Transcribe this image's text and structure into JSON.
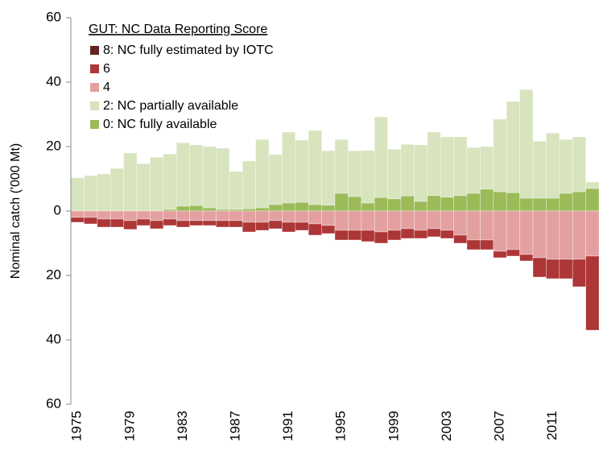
{
  "chart_data": {
    "type": "bar",
    "stacked": true,
    "y_label": "Nominal catch ('000 Mt)",
    "legend_title": "GUT: NC Data Reporting Score",
    "legend_position": "upper left",
    "negative_label_color": "#e00000",
    "ylim": [
      -60,
      60
    ],
    "yticks": [
      {
        "value": -60,
        "label": "60"
      },
      {
        "value": -40,
        "label": "40"
      },
      {
        "value": -20,
        "label": "20"
      },
      0,
      20,
      40,
      60
    ],
    "categories": [
      "1975",
      null,
      null,
      null,
      "1979",
      null,
      null,
      null,
      "1983",
      null,
      null,
      null,
      "1987",
      null,
      null,
      null,
      "1991",
      null,
      null,
      null,
      "1995",
      null,
      null,
      null,
      "1999",
      null,
      null,
      null,
      "2003",
      null,
      null,
      null,
      "2007",
      null,
      null,
      null,
      "2011",
      null,
      null,
      null
    ],
    "series": [
      {
        "name": "8: NC fully estimated by IOTC",
        "color": "#632523",
        "values": [
          0,
          0,
          0,
          0,
          0,
          0,
          0,
          0,
          0,
          0,
          0,
          0,
          0,
          0,
          0,
          0,
          0,
          0,
          0,
          0,
          0,
          0,
          0,
          0,
          0,
          0,
          0,
          0,
          0,
          0,
          0,
          0,
          0,
          0,
          0,
          0,
          0,
          0,
          0,
          0
        ]
      },
      {
        "name": "6",
        "color": "#ad3636",
        "values": [
          -1.5,
          -2,
          -2.5,
          -2.5,
          -2.7,
          -2,
          -2.5,
          -2,
          -2,
          -1.5,
          -1.5,
          -2,
          -2,
          -3,
          -2.5,
          -2.5,
          -3,
          -2.5,
          -3.5,
          -2.5,
          -3,
          -3,
          -3.5,
          -3.5,
          -3,
          -3,
          -2.5,
          -2.5,
          -2.5,
          -2.5,
          -3,
          -3,
          -2,
          -2,
          -2,
          -6,
          -6,
          -6,
          -8.5,
          -23
        ]
      },
      {
        "name": "4",
        "color": "#e4a0a0",
        "values": [
          -2,
          -2,
          -2.5,
          -2.5,
          -3,
          -2.5,
          -3,
          -2.5,
          -3,
          -3,
          -3,
          -3,
          -3,
          -3.5,
          -3.5,
          -3,
          -3.5,
          -3.5,
          -4,
          -4.5,
          -6,
          -6,
          -6,
          -6.5,
          -6,
          -5.5,
          -6,
          -5.5,
          -6,
          -7.5,
          -9,
          -9,
          -12.5,
          -12,
          -13.5,
          -14.5,
          -15,
          -15,
          -15,
          -14
        ]
      },
      {
        "name": "2: NC partially available",
        "color": "#d7e4bd",
        "values": [
          10.3,
          11,
          11.5,
          13.2,
          18,
          14.7,
          16.7,
          17.2,
          19.7,
          18.8,
          19,
          19,
          11.8,
          14.8,
          21.2,
          15.5,
          22,
          19.3,
          23,
          16.9,
          16.7,
          14.2,
          16.3,
          25,
          15.4,
          16,
          17.5,
          19.7,
          18.7,
          18.2,
          14.2,
          13.2,
          22.5,
          28.3,
          33.7,
          17.7,
          20.2,
          16.7,
          17,
          2
        ]
      },
      {
        "name": "0: NC fully available",
        "color": "#9bbb59",
        "values": [
          0,
          0,
          0,
          0,
          0,
          0,
          0,
          0.5,
          1.5,
          1.7,
          1,
          0.5,
          0.5,
          0.7,
          1,
          2,
          2.5,
          2.7,
          2,
          1.8,
          5.5,
          4.5,
          2.5,
          4.2,
          3.8,
          4.7,
          3,
          4.8,
          4.3,
          4.8,
          5.5,
          6.8,
          6,
          5.7,
          4,
          4,
          4,
          5.5,
          6,
          7
        ]
      }
    ]
  }
}
